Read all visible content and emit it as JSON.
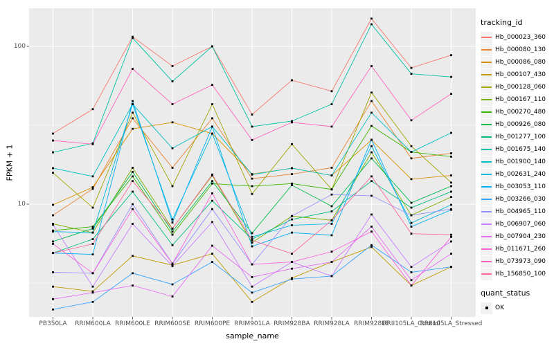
{
  "chart_data": {
    "type": "line",
    "title": "",
    "xlabel": "sample_name",
    "ylabel": "FPKM + 1",
    "y_scale": "log10",
    "ylim": [
      1.9,
      175
    ],
    "grid": true,
    "legend_position": "right",
    "y_ticks": [
      {
        "value": 100,
        "label": "100"
      },
      {
        "value": 10,
        "label": "10"
      }
    ],
    "y_minor_breaks": [
      3.162,
      31.623
    ],
    "categories": [
      "PB350LA",
      "RRIM600LA",
      "RRIM600LE",
      "RRIM600SE",
      "RRIM600PE",
      "RRIM901LA",
      "RRIM928BA",
      "RRIM928LA",
      "RRIM928LE",
      "RRII105LA_Control",
      "RRII105LA_Stressed"
    ],
    "legend": {
      "title": "tracking_id"
    },
    "legend2": {
      "title": "quant_status",
      "items": [
        {
          "label": "OK",
          "marker": "black-square"
        }
      ]
    },
    "marker": {
      "shape": "square",
      "color": "#000000"
    },
    "series": [
      {
        "name": "Hb_000023_360",
        "color": "#F8766D",
        "values": [
          28,
          40,
          115,
          75,
          100,
          37,
          61,
          52,
          150,
          73,
          88
        ]
      },
      {
        "name": "Hb_000080_130",
        "color": "#EA8331",
        "values": [
          8.5,
          12.5,
          35,
          17,
          35,
          14.5,
          15.5,
          17,
          45,
          19.5,
          21
        ]
      },
      {
        "name": "Hb_000086_080",
        "color": "#D89000",
        "values": [
          9.9,
          12.8,
          30,
          33,
          28,
          15.5,
          16.9,
          15.2,
          25.5,
          14.4,
          15.2
        ]
      },
      {
        "name": "Hb_000107_430",
        "color": "#C09B00",
        "values": [
          3.0,
          2.8,
          4.7,
          4.1,
          4.85,
          2.4,
          3.4,
          4.3,
          5.35,
          3.05,
          4.0
        ]
      },
      {
        "name": "Hb_000128_060",
        "color": "#A3A500",
        "values": [
          15.8,
          9.5,
          38,
          13,
          43,
          11.6,
          24,
          12.4,
          51,
          23.3,
          13.7
        ]
      },
      {
        "name": "Hb_000167_110",
        "color": "#7CAE00",
        "values": [
          7.5,
          6.6,
          17,
          7.0,
          15.2,
          5.7,
          8.4,
          7.9,
          21.3,
          8.5,
          11.1
        ]
      },
      {
        "name": "Hb_000270_480",
        "color": "#39B600",
        "values": [
          6.8,
          7.2,
          15,
          6.4,
          13.5,
          13,
          13.5,
          12.4,
          31.3,
          21.4,
          20
        ]
      },
      {
        "name": "Hb_000926_080",
        "color": "#00BB4E",
        "values": [
          5.8,
          7.0,
          16,
          6.7,
          14,
          6.55,
          13.2,
          9.7,
          19.5,
          10.2,
          13
        ]
      },
      {
        "name": "Hb_001277_100",
        "color": "#00BF7D",
        "values": [
          4.9,
          6.0,
          12,
          5.5,
          10.5,
          6.0,
          8.0,
          9.0,
          14,
          9.5,
          12
        ]
      },
      {
        "name": "Hb_001675_140",
        "color": "#00C1A3",
        "values": [
          21.3,
          24.3,
          113,
          60,
          100,
          31,
          33.6,
          43,
          138,
          67,
          64
        ]
      },
      {
        "name": "Hb_001900_140",
        "color": "#00BFC4",
        "values": [
          16.9,
          15.0,
          43,
          22.6,
          31,
          15.4,
          16.9,
          15.2,
          38,
          21.4,
          28.3
        ]
      },
      {
        "name": "Hb_002631_240",
        "color": "#00BAE0",
        "values": [
          6.7,
          6.6,
          43,
          8.0,
          28,
          6.2,
          7.35,
          7.5,
          23.3,
          7.6,
          9.9
        ]
      },
      {
        "name": "Hb_003053_110",
        "color": "#00B0F6",
        "values": [
          4.9,
          4.8,
          45,
          7.65,
          31,
          5.4,
          6.6,
          6.35,
          25.6,
          7.2,
          9.2
        ]
      },
      {
        "name": "Hb_003266_030",
        "color": "#35A2FF",
        "values": [
          2.15,
          2.4,
          3.65,
          3.1,
          4.3,
          2.75,
          3.35,
          3.5,
          5.5,
          3.7,
          4.0
        ]
      },
      {
        "name": "Hb_004965_110",
        "color": "#9590FF",
        "values": [
          3.7,
          3.65,
          10,
          4.2,
          9.3,
          4.15,
          8.4,
          11.5,
          11.3,
          8.5,
          9.3
        ]
      },
      {
        "name": "Hb_006907_060",
        "color": "#C77CFF",
        "values": [
          7.4,
          3.0,
          7.5,
          4.05,
          7.7,
          3.0,
          4.3,
          3.5,
          8.6,
          4.0,
          5.8
        ]
      },
      {
        "name": "Hb_007904_230",
        "color": "#E76BF3",
        "values": [
          2.5,
          2.75,
          3.05,
          2.6,
          5.45,
          3.45,
          3.9,
          4.3,
          7.2,
          3.3,
          4.85
        ]
      },
      {
        "name": "Hb_011671_260",
        "color": "#FA62DB",
        "values": [
          5.6,
          3.65,
          9.3,
          4.2,
          11.7,
          4.15,
          4.3,
          5.0,
          6.7,
          3.05,
          6.2
        ]
      },
      {
        "name": "Hb_073973_090",
        "color": "#FF62BC",
        "values": [
          25.3,
          24,
          72,
          43,
          57,
          25.5,
          33,
          31,
          75,
          34,
          50
        ]
      },
      {
        "name": "Hb_156850_100",
        "color": "#FF6A98",
        "values": [
          4.9,
          5.6,
          14,
          7.0,
          15.4,
          5.9,
          4.85,
          7.9,
          15,
          6.5,
          6.4
        ]
      }
    ]
  },
  "colors": {
    "background": "#FFFFFF",
    "panel_bg": "#EBEBEB",
    "grid_major": "#FFFFFF",
    "grid_minor": "#FFFFFF",
    "tick_label": "#4D4D4D",
    "tick_mark": "#333333",
    "axis_title": "#000000",
    "legend_key_bg": "#F2F2F2",
    "point": "#000000"
  }
}
